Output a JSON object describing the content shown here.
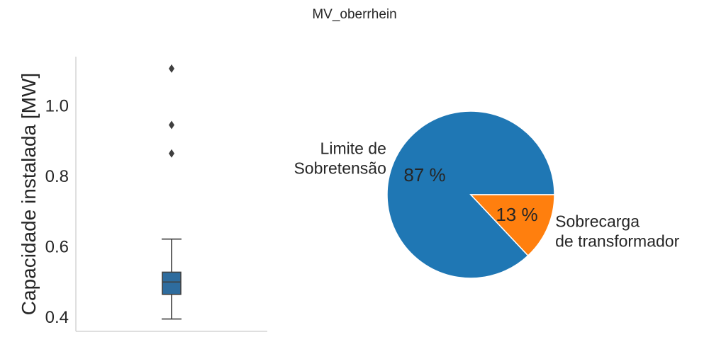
{
  "suptitle": "MV_oberrhein",
  "chart_data": [
    {
      "type": "box",
      "title": "",
      "xlabel": "",
      "ylabel": "Capacidade instalada [MW]",
      "ylim": [
        0.36,
        1.14
      ],
      "yticks": [
        0.4,
        0.6,
        0.8,
        1.0
      ],
      "ytick_labels": [
        "0.4",
        "0.6",
        "0.8",
        "1.0"
      ],
      "box": {
        "whisker_low": 0.395,
        "q1": 0.465,
        "median": 0.5,
        "q3": 0.528,
        "whisker_high": 0.622,
        "outliers": [
          0.865,
          0.946,
          1.106
        ],
        "color": "#2e6c9e"
      },
      "grid": false
    },
    {
      "type": "pie",
      "title": "",
      "slices": [
        {
          "label_lines": [
            "Limite de",
            "Sobretensão"
          ],
          "value": 87,
          "pct_label": "87 %",
          "color": "#1f77b4"
        },
        {
          "label_lines": [
            "Sobrecarga",
            "de transformador"
          ],
          "value": 13,
          "pct_label": "13 %",
          "color": "#ff7f0e"
        }
      ]
    }
  ]
}
